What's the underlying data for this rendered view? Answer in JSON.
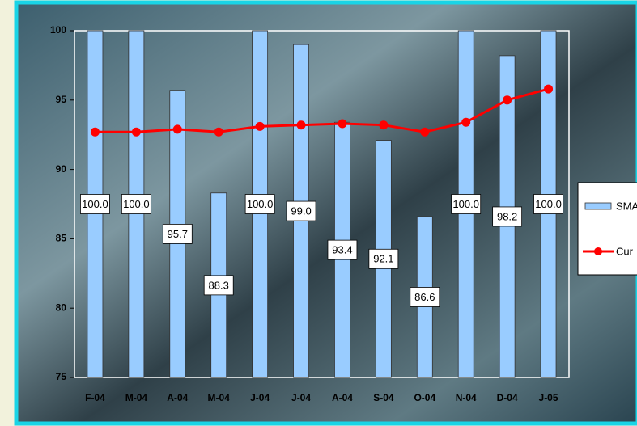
{
  "chart_data": {
    "type": "bar",
    "categories": [
      "F-04",
      "M-04",
      "A-04",
      "M-04",
      "J-04",
      "J-04",
      "A-04",
      "S-04",
      "O-04",
      "N-04",
      "D-04",
      "J-05"
    ],
    "series": [
      {
        "name": "SMA",
        "type": "bar",
        "color": "#99ccff",
        "values": [
          100,
          100,
          95.7,
          88.3,
          100,
          99.0,
          93.4,
          92.1,
          86.6,
          100,
          98.2,
          100
        ],
        "value_labels": [
          "100.0",
          "100.0",
          "95.7",
          "88.3",
          "100.0",
          "99.0",
          "93.4",
          "92.1",
          "86.6",
          "100.0",
          "98.2",
          "100.0"
        ]
      },
      {
        "name": "Cur",
        "type": "line",
        "color": "#ff0000",
        "values": [
          92.7,
          92.7,
          92.9,
          92.7,
          93.1,
          93.2,
          93.3,
          93.2,
          92.7,
          93.4,
          95.0,
          95.8
        ]
      }
    ],
    "ylim": [
      75,
      100
    ],
    "yticks": [
      75,
      80,
      85,
      90,
      95,
      100
    ],
    "legend": "right"
  }
}
